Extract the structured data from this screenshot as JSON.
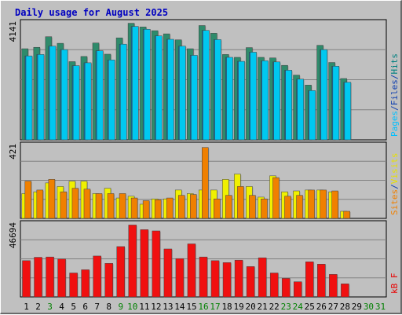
{
  "chart_data": {
    "type": "bar",
    "title": "Daily usage for August 2025",
    "x": [
      "1",
      "2",
      "3",
      "4",
      "5",
      "6",
      "7",
      "8",
      "9",
      "10",
      "11",
      "12",
      "13",
      "14",
      "15",
      "16",
      "17",
      "18",
      "19",
      "20",
      "21",
      "22",
      "23",
      "24",
      "25",
      "26",
      "27",
      "28",
      "29",
      "30",
      "31"
    ],
    "weekend_days": [
      "3",
      "9",
      "10",
      "16",
      "17",
      "23",
      "24",
      "30",
      "31"
    ],
    "panels": [
      {
        "id": "hits",
        "ymax_label": "4141",
        "ylim": [
          0,
          4141
        ],
        "right_labels": [
          {
            "text": "Pages",
            "color": "#00c0ff"
          },
          {
            "text": "/",
            "color": "#1040b0"
          },
          {
            "text": "Files",
            "color": "#1040b0"
          },
          {
            "text": "/",
            "color": "#1040b0"
          },
          {
            "text": "Hits",
            "color": "#008080"
          }
        ],
        "series": [
          {
            "name": "Hits",
            "color": "#2e8b6b",
            "values": [
              3180,
              3230,
              3600,
              3370,
              2730,
              2910,
              3380,
              2990,
              3560,
              4070,
              3940,
              3810,
              3700,
              3490,
              3180,
              3990,
              3720,
              2980,
              2880,
              3220,
              2880,
              2860,
              2600,
              2260,
              1910,
              3300,
              2700,
              2140,
              null,
              null,
              null
            ]
          },
          {
            "name": "Files",
            "color": "#0a6fae",
            "values": [
              2930,
              2980,
              3270,
              3150,
              2590,
              2690,
              3110,
              2790,
              3340,
              3960,
              3860,
              3630,
              3510,
              3270,
              2950,
              3820,
              3500,
              2880,
              2740,
              3060,
              2760,
              2720,
              2430,
              2120,
              1720,
              3150,
              2570,
              2010,
              null,
              null,
              null
            ]
          },
          {
            "name": "Pages",
            "color": "#00c8f0",
            "values": [
              2930,
              2980,
              3270,
              3150,
              2590,
              2690,
              3110,
              2790,
              3340,
              3960,
              3860,
              3630,
              3510,
              3270,
              2950,
              3820,
              3500,
              2880,
              2740,
              3060,
              2760,
              2720,
              2430,
              2120,
              1720,
              3150,
              2570,
              2010,
              null,
              null,
              null
            ]
          }
        ]
      },
      {
        "id": "visits",
        "ymax_label": "421",
        "ylim": [
          0,
          421
        ],
        "right_labels": [
          {
            "text": "Sites",
            "color": "#f08000"
          },
          {
            "text": "/",
            "color": "#1040b0"
          },
          {
            "text": "Visits",
            "color": "#e8e000"
          }
        ],
        "series": [
          {
            "name": "Visits",
            "color": "#f0f000",
            "values": [
              140,
              150,
              200,
              180,
              210,
              210,
              140,
              170,
              115,
              125,
              80,
              110,
              110,
              160,
              140,
              160,
              160,
              220,
              250,
              180,
              120,
              240,
              150,
              155,
              160,
              160,
              150,
              40,
              null,
              null,
              null
            ]
          },
          {
            "name": "Sites",
            "color": "#f08000",
            "values": [
              210,
              160,
              220,
              150,
              170,
              165,
              140,
              140,
              140,
              115,
              100,
              105,
              115,
              130,
              135,
              400,
              110,
              130,
              180,
              130,
              110,
              230,
              125,
              130,
              160,
              160,
              155,
              40,
              null,
              null,
              null
            ]
          }
        ]
      },
      {
        "id": "kbytes",
        "ymax_label": "46694",
        "ylim": [
          0,
          46694
        ],
        "right_labels": [
          {
            "text": "kB F",
            "color": "#e80000"
          }
        ],
        "series": [
          {
            "name": "kB F",
            "color": "#f01010",
            "values": [
              22700,
              24800,
              25000,
              23700,
              15000,
              17000,
              25600,
              21000,
              31500,
              45000,
              42100,
              41300,
              30000,
              24000,
              33200,
              25000,
              22700,
              21500,
              23000,
              19000,
              24500,
              15000,
              11600,
              9500,
              22000,
              20500,
              14100,
              8200,
              null,
              null,
              null
            ]
          }
        ]
      }
    ]
  }
}
